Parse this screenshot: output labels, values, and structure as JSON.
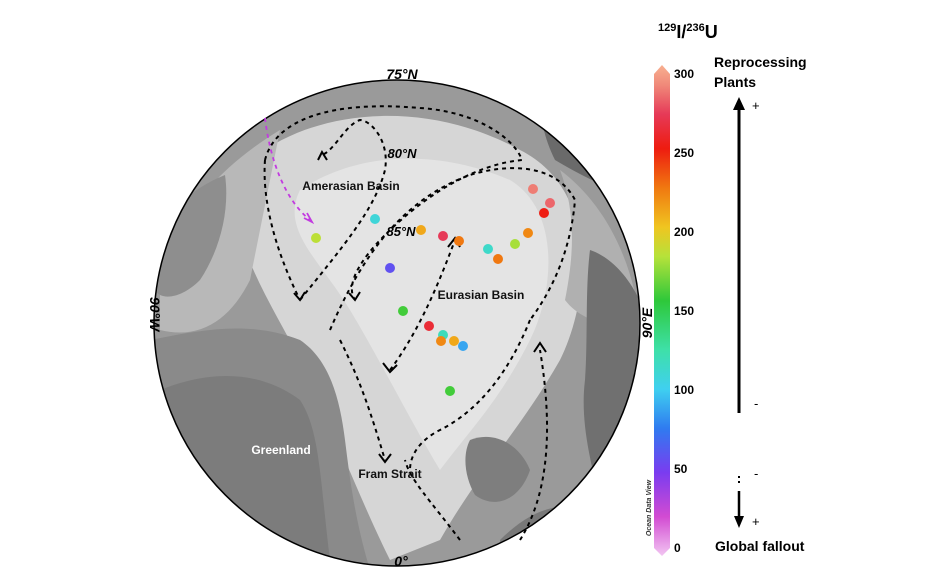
{
  "map": {
    "latitude_labels": [
      "75°N",
      "80°N",
      "85°N"
    ],
    "longitude_labels": {
      "bottom": "0°",
      "right": "90°E",
      "left": "90°W"
    },
    "region_labels": {
      "amerasian": "Amerasian Basin",
      "eurasian": "Eurasian Basin",
      "greenland": "Greenland",
      "fram": "Fram Strait"
    },
    "watermark": "Ocean Data View"
  },
  "colorbar": {
    "title_part1": "129",
    "title_part2": "I/",
    "title_part3": "236",
    "title_part4": "U",
    "ticks": [
      "300",
      "250",
      "200",
      "150",
      "100",
      "50",
      "0"
    ],
    "min": 0,
    "max": 300
  },
  "legend": {
    "top_label_line1": "Reprocessing",
    "top_label_line2": "Plants",
    "bottom_label": "Global fallout",
    "plus_top": "+",
    "minus_top": "-",
    "minus_bottom": "-",
    "plus_bottom": "+"
  },
  "stations": [
    {
      "id": 1,
      "value": 185
    },
    {
      "id": 2,
      "value": 110
    },
    {
      "id": 3,
      "value": 210
    },
    {
      "id": 4,
      "value": 270
    },
    {
      "id": 5,
      "value": 225
    },
    {
      "id": 6,
      "value": 60
    },
    {
      "id": 7,
      "value": 160
    },
    {
      "id": 8,
      "value": 285
    },
    {
      "id": 9,
      "value": 280
    },
    {
      "id": 10,
      "value": 250
    },
    {
      "id": 11,
      "value": 220
    },
    {
      "id": 12,
      "value": 180
    },
    {
      "id": 13,
      "value": 115
    },
    {
      "id": 14,
      "value": 225
    },
    {
      "id": 15,
      "value": 260
    },
    {
      "id": 16,
      "value": 120
    },
    {
      "id": 17,
      "value": 220
    },
    {
      "id": 18,
      "value": 210
    },
    {
      "id": 19,
      "value": 90
    },
    {
      "id": 20,
      "value": 160
    }
  ]
}
